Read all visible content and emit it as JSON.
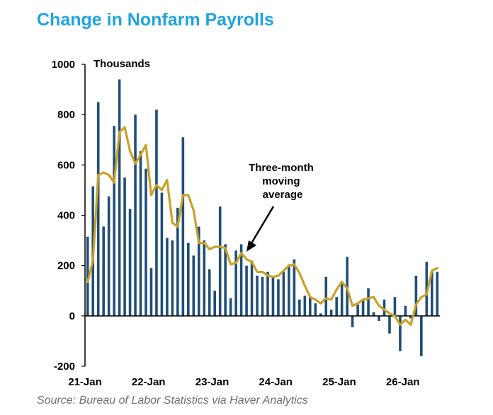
{
  "title": "Change in Nonfarm Payrolls",
  "source": "Source: Bureau of Labor Statistics via Haver Analytics",
  "colors": {
    "title": "#1fa3e0",
    "bars": "#1f4e79",
    "line": "#c9a227"
  },
  "chart_data": {
    "type": "bar",
    "title": "Change in Nonfarm Payrolls",
    "ylabel": "Thousands",
    "xlabel": "",
    "ylim": [
      -200,
      1000
    ],
    "yticks": [
      -200,
      0,
      200,
      400,
      600,
      800,
      1000
    ],
    "xtick_labels": [
      "21-Jan",
      "22-Jan",
      "23-Jan",
      "24-Jan",
      "25-Jan",
      "26-Jan"
    ],
    "x_start": "2021-01",
    "annotation": "Three-month moving average",
    "grid": false,
    "series": [
      {
        "type": "bar",
        "values": [
          315,
          515,
          850,
          355,
          475,
          755,
          940,
          550,
          425,
          800,
          655,
          585,
          190,
          820,
          490,
          310,
          300,
          430,
          710,
          290,
          240,
          355,
          300,
          185,
          100,
          435,
          285,
          70,
          260,
          285,
          200,
          220,
          160,
          155,
          175,
          155,
          145,
          175,
          205,
          225,
          65,
          80,
          75,
          50,
          10,
          155,
          25,
          75,
          135,
          235,
          -45,
          45,
          65,
          110,
          15,
          -20,
          65,
          -70,
          75,
          -140,
          40,
          -10,
          160,
          -160,
          215,
          180,
          175
        ]
      },
      {
        "type": "line",
        "values": [
          135,
          220,
          560,
          570,
          560,
          530,
          730,
          750,
          655,
          605,
          640,
          680,
          480,
          520,
          500,
          540,
          370,
          355,
          480,
          480,
          420,
          290,
          290,
          265,
          275,
          275,
          270,
          205,
          210,
          250,
          225,
          215,
          175,
          175,
          160,
          155,
          160,
          180,
          200,
          205,
          170,
          120,
          75,
          65,
          50,
          70,
          65,
          105,
          135,
          110,
          40,
          50,
          65,
          70,
          75,
          40,
          25,
          10,
          0,
          -35,
          -15,
          -35,
          45,
          75,
          85,
          180,
          190
        ]
      }
    ]
  }
}
